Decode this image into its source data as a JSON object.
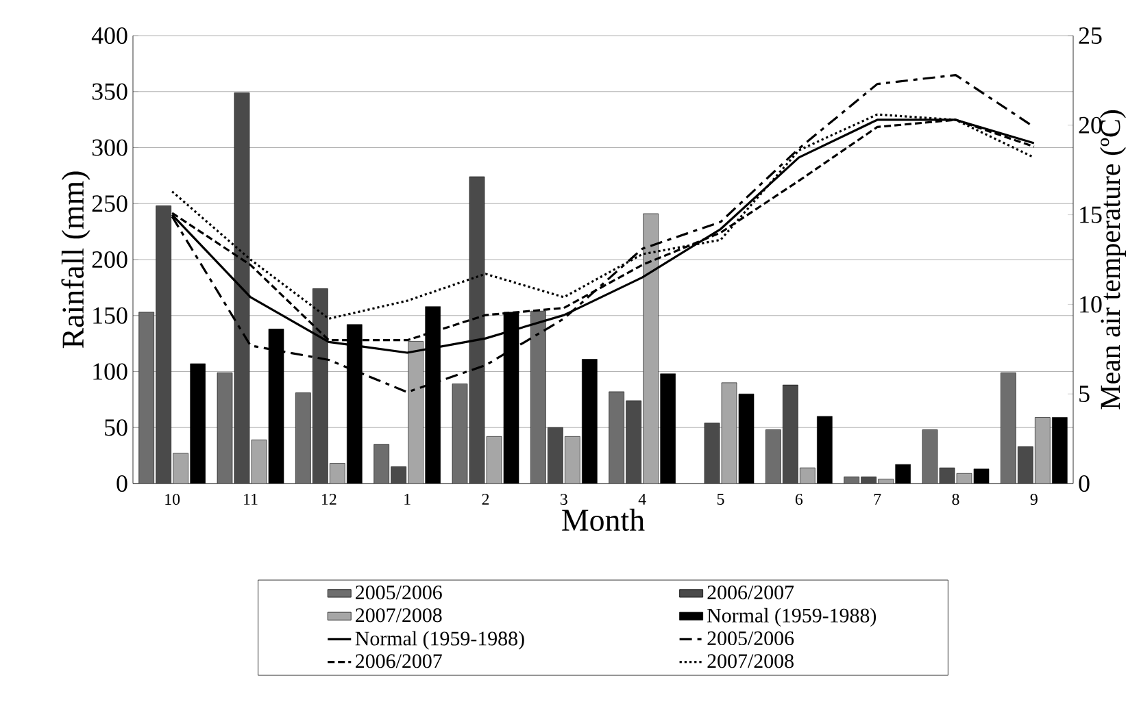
{
  "chart_data": {
    "type": "bar",
    "xlabel": "Month",
    "ylabel": "Rainfall (mm)",
    "y2label": "Mean air temperature (ºC)",
    "categories": [
      "10",
      "11",
      "12",
      "1",
      "2",
      "3",
      "4",
      "5",
      "6",
      "7",
      "8",
      "9"
    ],
    "ylim": [
      0,
      400
    ],
    "yticks": [
      0,
      50,
      100,
      150,
      200,
      250,
      300,
      350,
      400
    ],
    "y2lim": [
      0,
      25
    ],
    "y2ticks": [
      0,
      5,
      10,
      15,
      20,
      25
    ],
    "grid": "y",
    "legend": "bottom",
    "series": [
      {
        "name": "2005/2006",
        "color": "#6e6e6e",
        "values": [
          153,
          99,
          81,
          35,
          89,
          154,
          82,
          null,
          48,
          6,
          48,
          99
        ]
      },
      {
        "name": "2006/2007",
        "color": "#4a4a4a",
        "values": [
          248,
          349,
          174,
          15,
          274,
          50,
          74,
          54,
          88,
          6,
          14,
          33
        ]
      },
      {
        "name": "2007/2008",
        "color": "#a6a6a6",
        "values": [
          27,
          39,
          18,
          127,
          42,
          42,
          241,
          90,
          14,
          4,
          9,
          59
        ]
      },
      {
        "name": "Normal (1959-1988)",
        "color": "#000000",
        "values": [
          107,
          138,
          142,
          158,
          153,
          111,
          98,
          80,
          60,
          17,
          13,
          59
        ]
      },
      {
        "name": "Normal (1959-1988)",
        "type": "line",
        "axis": "y2",
        "line_style": "solid",
        "color": "#000000",
        "values": [
          15.0,
          10.4,
          7.9,
          7.3,
          8.1,
          9.4,
          11.5,
          14.2,
          18.2,
          20.3,
          20.3,
          19.0
        ]
      },
      {
        "name": "2005/2006",
        "type": "line",
        "axis": "y2",
        "line_style": "dashed",
        "color": "#000000",
        "values": [
          14.9,
          7.7,
          6.9,
          5.1,
          6.6,
          9.2,
          13.1,
          14.6,
          18.7,
          22.3,
          22.8,
          19.9
        ]
      },
      {
        "name": "2006/2007",
        "type": "line",
        "axis": "y2",
        "line_style": "dashed",
        "color": "#000000",
        "values": [
          15.1,
          12.2,
          8.0,
          8.0,
          9.4,
          9.8,
          12.2,
          14.0,
          16.9,
          19.9,
          20.3,
          18.8
        ]
      },
      {
        "name": "2007/2008",
        "type": "line",
        "axis": "y2",
        "line_style": "dotted",
        "color": "#000000",
        "values": [
          16.3,
          12.5,
          9.2,
          10.2,
          11.7,
          10.4,
          12.8,
          13.6,
          18.6,
          20.6,
          20.3,
          18.2
        ]
      }
    ]
  }
}
